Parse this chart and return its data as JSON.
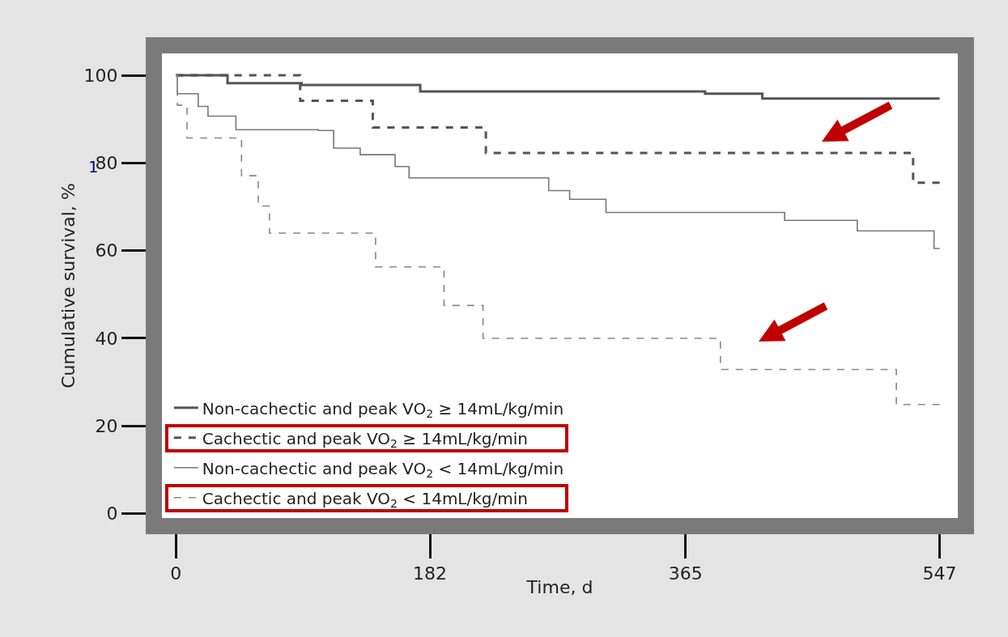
{
  "chart_data": {
    "type": "step",
    "xlabel": "Time, d",
    "ylabel": "Cumulative survival, %",
    "xlim": [
      -10,
      560
    ],
    "ylim": [
      -1,
      105
    ],
    "xticks": [
      0,
      182,
      365,
      547
    ],
    "yticks": [
      0,
      20,
      40,
      60,
      80,
      100
    ],
    "grid": false,
    "legend": "bottom left",
    "annotations": [
      "1"
    ],
    "series": [
      {
        "name": "Non-cachectic and peak VO$_{2}$ ≥ 14mL/kg/min",
        "color": "#555555",
        "line_style": "solid",
        "x": [
          0,
          37,
          90,
          175,
          379,
          420,
          547
        ],
        "values": [
          100,
          98.2,
          97.8,
          96.3,
          95.8,
          94.7,
          94.7
        ]
      },
      {
        "name": "Cachectic and peak VO$_{2}$ ≥ 14mL/kg/min",
        "color": "#555555",
        "line_style": "dashed",
        "x": [
          0,
          89,
          141,
          222,
          528,
          547
        ],
        "values": [
          100,
          94.2,
          88.1,
          82.3,
          75.5,
          75.5
        ]
      },
      {
        "name": "Non-cachectic and peak VO$_{2}$ < 14mL/kg/min",
        "color": "#777777",
        "line_style": "solid",
        "x": [
          0,
          1,
          16,
          23,
          43,
          102,
          113,
          132,
          157,
          167,
          267,
          282,
          308,
          436,
          488,
          538,
          543,
          547
        ],
        "values": [
          100,
          95.8,
          92.9,
          90.7,
          87.6,
          87.4,
          83.4,
          81.9,
          79.2,
          76.6,
          73.7,
          71.7,
          68.7,
          66.9,
          64.5,
          64.5,
          60.5,
          60.5
        ]
      },
      {
        "name": "Cachectic and peak VO$_{2}$ < 14mL/kg/min",
        "color": "#888888",
        "line_style": "dashed",
        "x": [
          0,
          1,
          8,
          47,
          59,
          67,
          143,
          192,
          220,
          390,
          516,
          547
        ],
        "values": [
          100,
          93.2,
          85.7,
          77.1,
          70.2,
          64.0,
          56.3,
          47.5,
          40.0,
          32.9,
          24.9,
          24.9
        ]
      }
    ]
  }
}
